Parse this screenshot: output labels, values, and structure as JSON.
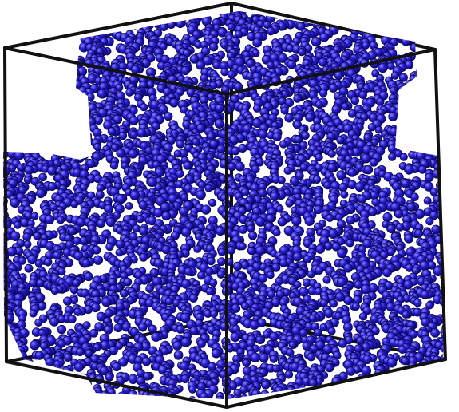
{
  "scene": {
    "particle_color": "#2a1fd6",
    "particle_highlight": "#8a86ff",
    "particle_shadow": "#0b0870",
    "particle_outline": "#05033a",
    "box_edge_color": "#111111",
    "background_color": "#ffffff"
  }
}
